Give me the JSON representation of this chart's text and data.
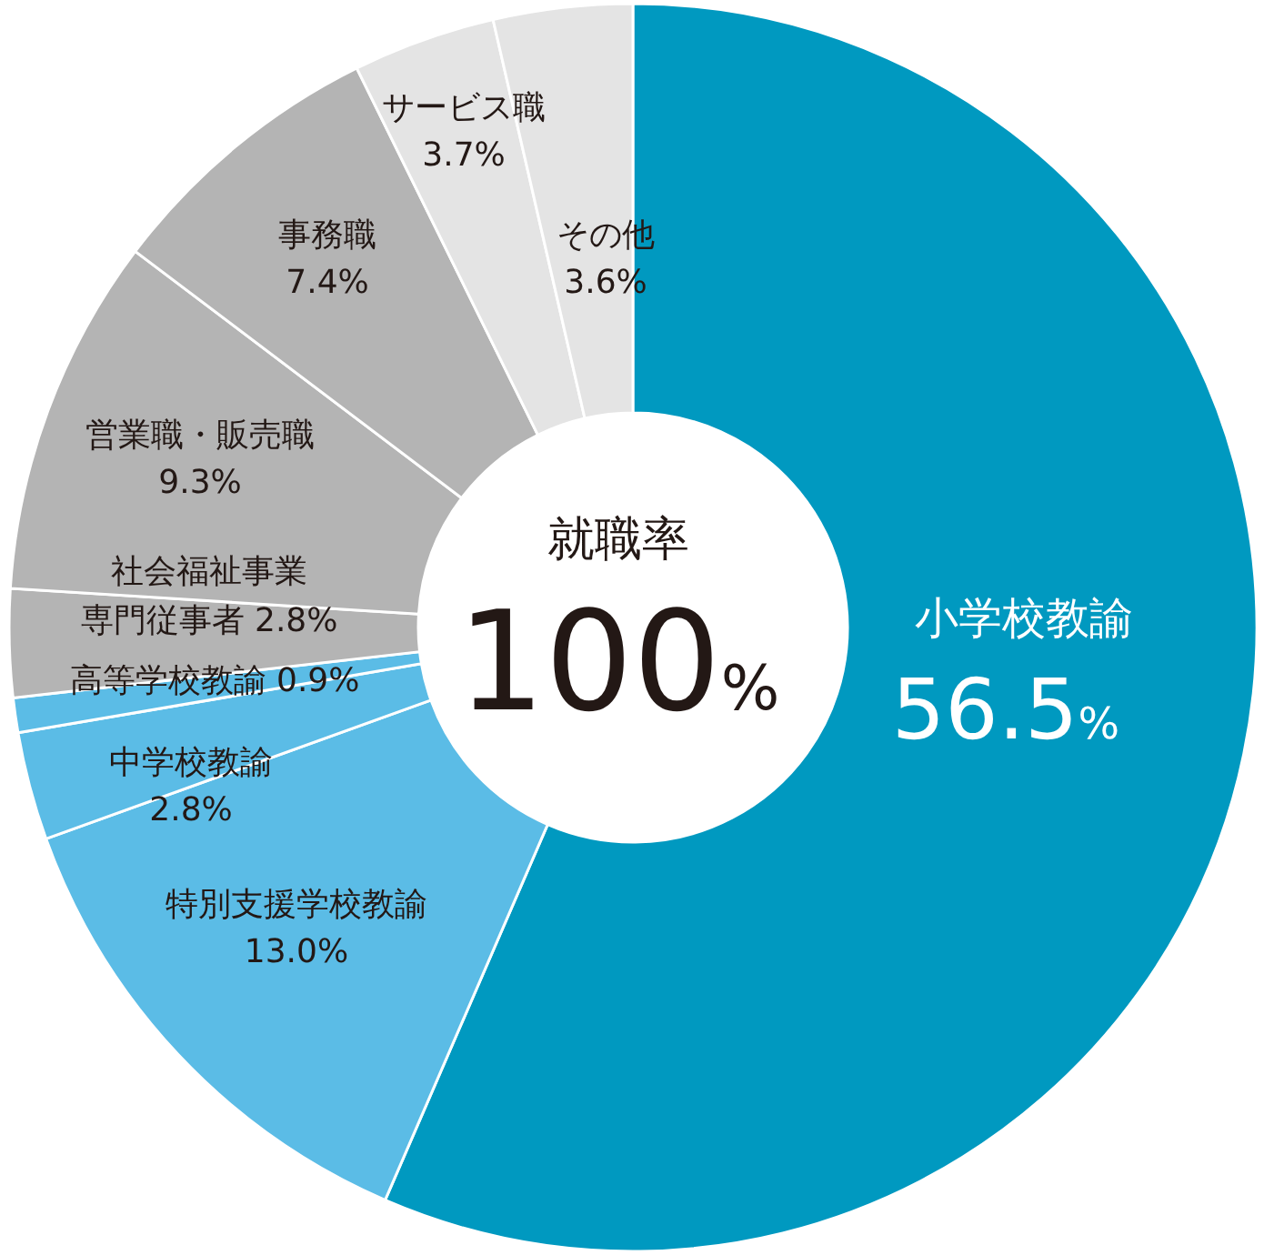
{
  "chart_data": {
    "type": "donut",
    "title": "就職率",
    "subtitle": "100%",
    "categories": [
      "小学校教諭",
      "特別支援学校教諭",
      "中学校教諭",
      "高等学校教諭",
      "社会福祉事業専門従事者",
      "営業職・販売職",
      "事務職",
      "サービス職",
      "その他"
    ],
    "values": [
      56.5,
      13.0,
      2.8,
      0.9,
      2.8,
      9.3,
      7.4,
      3.7,
      3.6
    ],
    "value_labels": [
      "56.5%",
      "13.0%",
      "2.8%",
      "0.9%",
      "2.8%",
      "9.3%",
      "7.4%",
      "3.7%",
      "3.6%"
    ],
    "colors": [
      "#0099c0",
      "#5bbce6",
      "#5bbce6",
      "#5bbce6",
      "#b4b4b4",
      "#b4b4b4",
      "#b4b4b4",
      "#e4e4e4",
      "#e4e4e4"
    ]
  }
}
